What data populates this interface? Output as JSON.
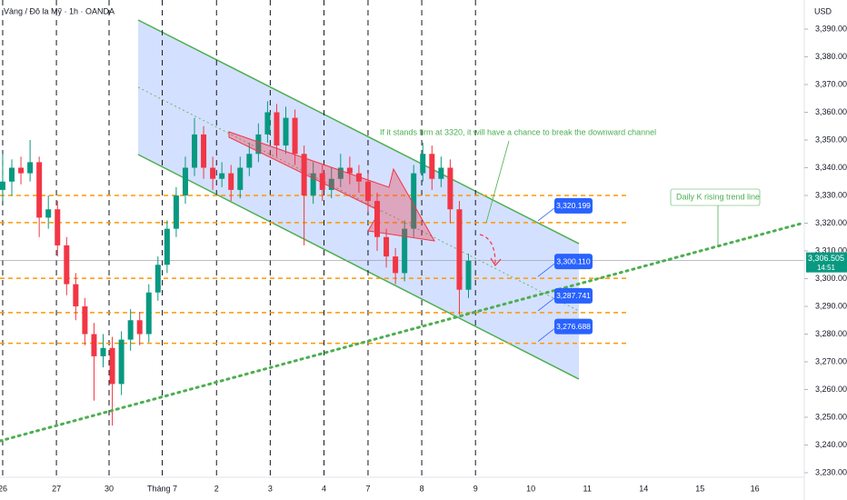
{
  "chart_data": {
    "type": "candlestick",
    "title": "Vàng / Đô la Mỹ · 1h · OANDA",
    "currency": "USD",
    "x": [
      0,
      0.17,
      0.34,
      0.51,
      0.68,
      0.85,
      1.02,
      1.19,
      1.36,
      1.53,
      1.7,
      1.87,
      2.04,
      2.21,
      2.38,
      2.55,
      2.72,
      2.89,
      3.06,
      3.23,
      3.4,
      3.57,
      3.74,
      3.91,
      4.08,
      4.25,
      4.42,
      4.59,
      4.76,
      4.93,
      5.1,
      5.27,
      5.44,
      5.61,
      5.78,
      5.95,
      6.12,
      6.29,
      6.46,
      6.63,
      6.8,
      6.97,
      7.14,
      7.31,
      7.48,
      7.65,
      7.82,
      7.99,
      8.16,
      8.33,
      8.5,
      8.67
    ],
    "open": [
      3332,
      3335,
      3340,
      3338,
      3342,
      3322,
      3325,
      3312,
      3298,
      3290,
      3280,
      3272,
      3275,
      3262,
      3278,
      3285,
      3280,
      3295,
      3305,
      3318,
      3330,
      3340,
      3352,
      3340,
      3336,
      3338,
      3332,
      3340,
      3345,
      3352,
      3360,
      3348,
      3358,
      3345,
      3330,
      3338,
      3332,
      3336,
      3340,
      3338,
      3335,
      3328,
      3315,
      3308,
      3302,
      3318,
      3338,
      3345,
      3336,
      3340,
      3325,
      3296
    ],
    "high": [
      3345,
      3343,
      3344,
      3350,
      3344,
      3330,
      3328,
      3315,
      3302,
      3293,
      3284,
      3280,
      3279,
      3281,
      3289,
      3288,
      3298,
      3308,
      3321,
      3333,
      3344,
      3358,
      3355,
      3344,
      3342,
      3341,
      3344,
      3349,
      3356,
      3364,
      3363,
      3362,
      3361,
      3348,
      3342,
      3341,
      3340,
      3345,
      3344,
      3341,
      3338,
      3331,
      3318,
      3311,
      3321,
      3341,
      3349,
      3348,
      3344,
      3343,
      3328,
      3309
    ],
    "low": [
      3328,
      3330,
      3334,
      3335,
      3315,
      3318,
      3308,
      3294,
      3285,
      3276,
      3256,
      3268,
      3247,
      3258,
      3274,
      3276,
      3277,
      3292,
      3302,
      3315,
      3327,
      3337,
      3336,
      3332,
      3333,
      3328,
      3329,
      3337,
      3342,
      3349,
      3344,
      3345,
      3341,
      3312,
      3327,
      3328,
      3329,
      3333,
      3334,
      3331,
      3324,
      3310,
      3304,
      3298,
      3299,
      3315,
      3335,
      3332,
      3333,
      3320,
      3287,
      3293
    ],
    "close": [
      3335,
      3340,
      3338,
      3342,
      3322,
      3325,
      3312,
      3298,
      3290,
      3280,
      3272,
      3275,
      3262,
      3278,
      3285,
      3280,
      3295,
      3305,
      3318,
      3330,
      3340,
      3352,
      3340,
      3336,
      3338,
      3332,
      3340,
      3345,
      3352,
      3360,
      3348,
      3358,
      3345,
      3330,
      3338,
      3332,
      3336,
      3340,
      3338,
      3335,
      3328,
      3315,
      3308,
      3302,
      3318,
      3338,
      3345,
      3336,
      3340,
      3325,
      3296,
      3306.505
    ],
    "last_price_label": "3,306.505",
    "countdown": "14:51",
    "up_color": "#089981",
    "down_color": "#f23645",
    "xlim": [
      -0.05,
      14.92
    ],
    "xticks": [
      {
        "value": 0,
        "label": "26"
      },
      {
        "value": 1,
        "label": "27"
      },
      {
        "value": 1.98,
        "label": "30"
      },
      {
        "value": 2.97,
        "label": "Tháng 7"
      },
      {
        "value": 3.98,
        "label": "2"
      },
      {
        "value": 4.98,
        "label": "3"
      },
      {
        "value": 5.98,
        "label": "4"
      },
      {
        "value": 6.8,
        "label": "7"
      },
      {
        "value": 7.8,
        "label": "8"
      },
      {
        "value": 8.8,
        "label": "9"
      },
      {
        "value": 9.83,
        "label": "10"
      },
      {
        "value": 10.88,
        "label": "11"
      },
      {
        "value": 11.93,
        "label": "14"
      },
      {
        "value": 12.98,
        "label": "15"
      },
      {
        "value": 14,
        "label": "16"
      }
    ],
    "ylim": [
      3228.2,
      3392
    ],
    "yticks": [
      {
        "value": 3390,
        "label": "3,390.000"
      },
      {
        "value": 3380,
        "label": "3,380.000"
      },
      {
        "value": 3370,
        "label": "3,370.000"
      },
      {
        "value": 3360,
        "label": "3,360.000"
      },
      {
        "value": 3350,
        "label": "3,350.000"
      },
      {
        "value": 3340,
        "label": "3,340.000"
      },
      {
        "value": 3330,
        "label": "3,330.000"
      },
      {
        "value": 3320,
        "label": "3,320.000"
      },
      {
        "value": 3310,
        "label": "3,310.000"
      },
      {
        "value": 3300,
        "label": "3,300.000"
      },
      {
        "value": 3290,
        "label": "3,290.000"
      },
      {
        "value": 3280,
        "label": "3,280.000"
      },
      {
        "value": 3270,
        "label": "3,270.000"
      },
      {
        "value": 3260,
        "label": "3,260.000"
      },
      {
        "value": 3250,
        "label": "3,250.000"
      },
      {
        "value": 3240,
        "label": "3,240.000"
      },
      {
        "value": 3230,
        "label": "3,230.000"
      }
    ],
    "levels": [
      {
        "value": 3330
      },
      {
        "value": 3320.199,
        "label": "3,320.199"
      },
      {
        "value": 3300.11,
        "label": "3,300.110"
      },
      {
        "value": 3287.741,
        "label": "3,287.741"
      },
      {
        "value": 3276.688,
        "label": "3,276.688"
      }
    ],
    "level_color": "#ff9800",
    "annotations": [
      "If it stands firm at 3320, it will have a chance to break the downward channel",
      "Daily K rising trend line"
    ]
  }
}
